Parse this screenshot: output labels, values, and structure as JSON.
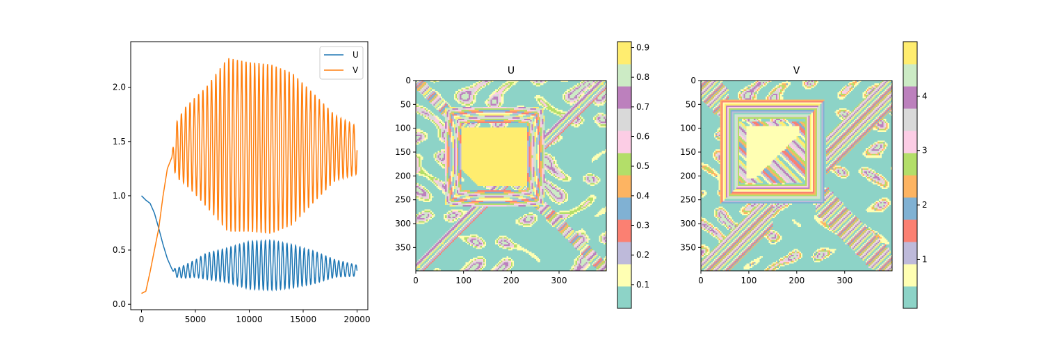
{
  "chart_data": [
    {
      "type": "line",
      "title": "",
      "xlabel": "",
      "ylabel": "",
      "xlim": [
        -1000,
        21000
      ],
      "ylim": [
        -0.05,
        2.42
      ],
      "xticks": [
        0,
        5000,
        10000,
        15000,
        20000
      ],
      "yticks": [
        0.0,
        0.5,
        1.0,
        1.5,
        2.0
      ],
      "xtick_labels": [
        "0",
        "5000",
        "10000",
        "15000",
        "20000"
      ],
      "ytick_labels": [
        "0.0",
        "0.5",
        "1.0",
        "1.5",
        "2.0"
      ],
      "legend": {
        "placement": "upper-right",
        "entries": [
          "U",
          "V"
        ]
      },
      "series": [
        {
          "name": "U",
          "color": "#1f77b4",
          "x": [
            0,
            400,
            800,
            1200,
            1600,
            2000,
            2400,
            2800,
            3200,
            4000,
            5000,
            6000,
            8000,
            10000,
            12000,
            14000,
            16000,
            18000,
            20000
          ],
          "y": [
            1.0,
            0.96,
            0.93,
            0.84,
            0.7,
            0.55,
            0.42,
            0.33,
            0.29,
            0.3,
            0.33,
            0.35,
            0.36,
            0.36,
            0.36,
            0.35,
            0.34,
            0.33,
            0.31
          ],
          "amplitude": [
            0,
            0,
            0,
            0,
            0,
            0,
            0,
            0,
            0.04,
            0.06,
            0.08,
            0.12,
            0.16,
            0.22,
            0.23,
            0.2,
            0.15,
            0.08,
            0.05
          ],
          "period": 400
        },
        {
          "name": "V",
          "color": "#ff7f0e",
          "x": [
            0,
            400,
            800,
            1200,
            1600,
            2000,
            2400,
            2800,
            3200,
            4000,
            5000,
            6000,
            8000,
            10000,
            12000,
            14000,
            16000,
            18000,
            20000
          ],
          "y": [
            0.1,
            0.12,
            0.3,
            0.5,
            0.7,
            1.0,
            1.25,
            1.35,
            1.42,
            1.46,
            1.46,
            1.45,
            1.47,
            1.45,
            1.43,
            1.43,
            1.44,
            1.44,
            1.42
          ],
          "amplitude": [
            0,
            0,
            0,
            0,
            0,
            0,
            0,
            0,
            0.25,
            0.35,
            0.45,
            0.55,
            0.8,
            0.78,
            0.78,
            0.7,
            0.5,
            0.3,
            0.22
          ],
          "period": 400
        }
      ]
    },
    {
      "type": "heatmap",
      "title": "U",
      "xlim": [
        0,
        399
      ],
      "ylim": [
        399,
        0
      ],
      "xticks": [
        0,
        100,
        200,
        300
      ],
      "yticks": [
        0,
        50,
        100,
        150,
        200,
        250,
        300,
        350
      ],
      "colormap": "Set3",
      "colorbar": {
        "ticks": [
          0.1,
          0.2,
          0.3,
          0.4,
          0.5,
          0.6,
          0.7,
          0.8,
          0.9
        ],
        "tick_labels": [
          "0.1",
          "0.2",
          "0.3",
          "0.4",
          "0.5",
          "0.6",
          "0.7",
          "0.8",
          "0.9"
        ],
        "range": [
          0.02,
          0.92
        ]
      }
    },
    {
      "type": "heatmap",
      "title": "V",
      "xlim": [
        0,
        399
      ],
      "ylim": [
        399,
        0
      ],
      "xticks": [
        0,
        100,
        200,
        300
      ],
      "yticks": [
        0,
        50,
        100,
        150,
        200,
        250,
        300,
        350
      ],
      "colormap": "Set3",
      "colorbar": {
        "ticks": [
          1,
          2,
          3,
          4
        ],
        "tick_labels": [
          "1",
          "2",
          "3",
          "4"
        ],
        "range": [
          0.1,
          5.0
        ]
      }
    }
  ],
  "colors": {
    "set3": [
      "#8dd3c7",
      "#ffffb3",
      "#bebada",
      "#fb8072",
      "#80b1d3",
      "#fdb462",
      "#b3de69",
      "#fccde5",
      "#d9d9d9",
      "#bc80bd",
      "#ccebc5",
      "#ffed6f"
    ]
  }
}
